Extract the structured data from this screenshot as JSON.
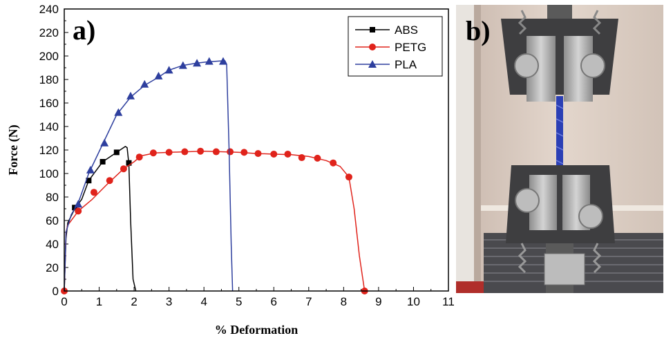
{
  "chart_data": {
    "type": "line",
    "panel_label": "a)",
    "xlabel": "% Deformation",
    "ylabel": "Force (N)",
    "xlim": [
      0,
      11
    ],
    "ylim": [
      0,
      240
    ],
    "xticks": [
      0,
      1,
      2,
      3,
      4,
      5,
      6,
      7,
      8,
      9,
      10,
      11
    ],
    "yticks": [
      0,
      20,
      40,
      60,
      80,
      100,
      120,
      140,
      160,
      180,
      200,
      220,
      240
    ],
    "legend_position": "top-right",
    "series": [
      {
        "name": "ABS",
        "color": "#000000",
        "marker": "square",
        "points": [
          [
            0,
            0
          ],
          [
            0.05,
            45
          ],
          [
            0.1,
            58
          ],
          [
            0.3,
            70
          ],
          [
            0.5,
            78
          ],
          [
            0.7,
            94
          ],
          [
            0.9,
            102
          ],
          [
            1.1,
            110
          ],
          [
            1.3,
            114
          ],
          [
            1.5,
            118
          ],
          [
            1.65,
            121
          ],
          [
            1.75,
            123
          ],
          [
            1.8,
            122
          ],
          [
            1.85,
            108
          ],
          [
            1.9,
            60
          ],
          [
            1.97,
            10
          ],
          [
            2.05,
            0
          ]
        ],
        "markers": [
          [
            0.3,
            71
          ],
          [
            0.7,
            94
          ],
          [
            1.1,
            110
          ],
          [
            1.5,
            118
          ],
          [
            1.85,
            109
          ]
        ]
      },
      {
        "name": "PETG",
        "color": "#e0231b",
        "marker": "circle",
        "points": [
          [
            0,
            0
          ],
          [
            0.05,
            50
          ],
          [
            0.1,
            56
          ],
          [
            0.4,
            68
          ],
          [
            0.8,
            78
          ],
          [
            1.2,
            90
          ],
          [
            1.7,
            104
          ],
          [
            2.0,
            110
          ],
          [
            2.2,
            115
          ],
          [
            2.6,
            117.5
          ],
          [
            3.0,
            118
          ],
          [
            3.5,
            118.5
          ],
          [
            4.0,
            119
          ],
          [
            4.5,
            118.5
          ],
          [
            5.0,
            118
          ],
          [
            5.5,
            117
          ],
          [
            6.0,
            116.5
          ],
          [
            6.5,
            116
          ],
          [
            7.0,
            114.5
          ],
          [
            7.5,
            111
          ],
          [
            7.9,
            106
          ],
          [
            8.15,
            97
          ],
          [
            8.3,
            70
          ],
          [
            8.45,
            30
          ],
          [
            8.6,
            0
          ]
        ],
        "markers": [
          [
            0,
            0
          ],
          [
            0.4,
            68
          ],
          [
            0.85,
            84
          ],
          [
            1.3,
            94
          ],
          [
            1.7,
            104
          ],
          [
            2.15,
            114
          ],
          [
            2.55,
            117.5
          ],
          [
            3.0,
            118
          ],
          [
            3.45,
            118.5
          ],
          [
            3.9,
            119
          ],
          [
            4.35,
            118.5
          ],
          [
            4.75,
            118.5
          ],
          [
            5.15,
            118
          ],
          [
            5.55,
            117
          ],
          [
            6.0,
            116.5
          ],
          [
            6.4,
            116.5
          ],
          [
            6.8,
            113.5
          ],
          [
            7.25,
            113
          ],
          [
            7.7,
            109
          ],
          [
            8.15,
            97
          ],
          [
            8.6,
            0
          ]
        ]
      },
      {
        "name": "PLA",
        "color": "#2e3f9e",
        "marker": "triangle",
        "points": [
          [
            0,
            0
          ],
          [
            0.05,
            50
          ],
          [
            0.2,
            65
          ],
          [
            0.4,
            75
          ],
          [
            0.7,
            100
          ],
          [
            1.1,
            125
          ],
          [
            1.5,
            150
          ],
          [
            1.9,
            165
          ],
          [
            2.3,
            175
          ],
          [
            2.7,
            182
          ],
          [
            3.0,
            188
          ],
          [
            3.4,
            192
          ],
          [
            3.8,
            194
          ],
          [
            4.1,
            195
          ],
          [
            4.6,
            196
          ],
          [
            4.65,
            193
          ],
          [
            4.72,
            120
          ],
          [
            4.78,
            40
          ],
          [
            4.82,
            0
          ]
        ],
        "markers": [
          [
            0.4,
            74
          ],
          [
            0.75,
            103
          ],
          [
            1.15,
            126
          ],
          [
            1.55,
            152
          ],
          [
            1.9,
            166
          ],
          [
            2.3,
            176
          ],
          [
            2.7,
            183
          ],
          [
            3.0,
            188
          ],
          [
            3.4,
            192
          ],
          [
            3.8,
            194
          ],
          [
            4.15,
            195.5
          ],
          [
            4.55,
            195.5
          ]
        ]
      }
    ]
  },
  "photo": {
    "panel_label": "b)"
  }
}
